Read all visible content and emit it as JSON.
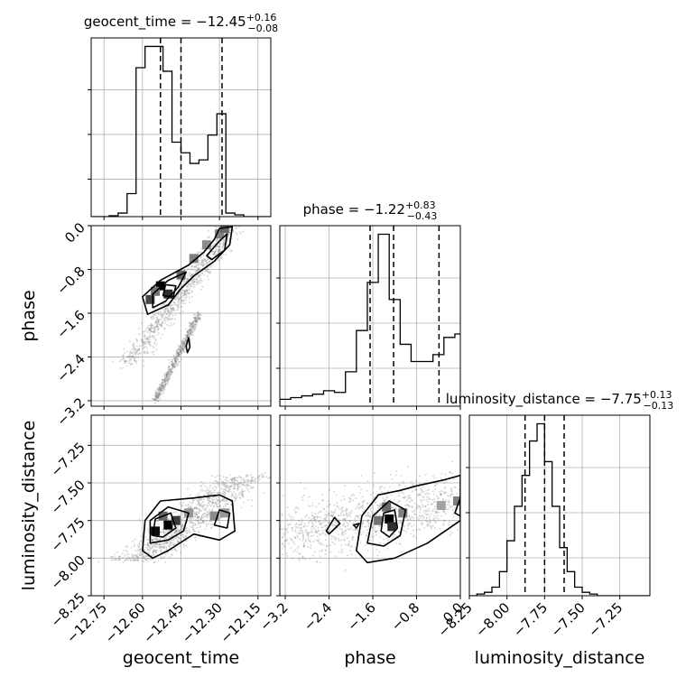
{
  "chart_data": {
    "type": "corner",
    "parameters": [
      "geocent_time",
      "phase",
      "luminosity_distance"
    ],
    "grid": true,
    "titles": [
      {
        "param": "geocent_time",
        "prefix": "geocent_time = ",
        "value": "−12.45",
        "plus": "+0.16",
        "minus": "−0.08"
      },
      {
        "param": "phase",
        "prefix": "phase = ",
        "value": "−1.22",
        "plus": "+0.83",
        "minus": "−0.43"
      },
      {
        "param": "luminosity_distance",
        "prefix": "luminosity_distance = ",
        "value": "−7.75",
        "plus": "+0.13",
        "minus": "−0.13"
      }
    ],
    "axes": {
      "geocent_time": {
        "label": "geocent_time",
        "range": [
          -12.8,
          -12.1
        ],
        "ticks": [
          -12.75,
          -12.6,
          -12.45,
          -12.3,
          -12.15
        ],
        "tick_labels": [
          "−12.75",
          "−12.60",
          "−12.45",
          "−12.30",
          "−12.15"
        ]
      },
      "phase": {
        "label": "phase",
        "range": [
          -3.3,
          0.0
        ],
        "ticks": [
          -3.2,
          -2.4,
          -1.6,
          -0.8,
          0.0
        ],
        "tick_labels": [
          "−3.2",
          "−2.4",
          "−1.6",
          "−0.8",
          "0.0"
        ]
      },
      "luminosity_distance": {
        "label": "luminosity_distance",
        "range": [
          -8.25,
          -7.05
        ],
        "ticks": [
          -8.25,
          -8.0,
          -7.75,
          -7.5,
          -7.25
        ],
        "tick_labels": [
          "−8.25",
          "−8.00",
          "−7.75",
          "−7.50",
          "−7.25"
        ]
      }
    },
    "histograms": {
      "geocent_time": {
        "edges": [
          -12.8,
          -12.765,
          -12.73,
          -12.695,
          -12.66,
          -12.625,
          -12.59,
          -12.555,
          -12.52,
          -12.485,
          -12.45,
          -12.415,
          -12.38,
          -12.345,
          -12.31,
          -12.275,
          -12.24,
          -12.205,
          -12.17,
          -12.135,
          -12.1
        ],
        "counts": [
          0,
          0,
          0.005,
          0.02,
          0.13,
          0.84,
          0.96,
          0.96,
          0.82,
          0.42,
          0.36,
          0.3,
          0.32,
          0.46,
          0.58,
          0.02,
          0.01,
          0,
          0,
          0
        ],
        "quantiles": [
          -12.53,
          -12.45,
          -12.29
        ]
      },
      "phase": {
        "edges": [
          -3.3,
          -3.1,
          -2.9,
          -2.7,
          -2.5,
          -2.3,
          -2.1,
          -1.9,
          -1.7,
          -1.5,
          -1.3,
          -1.1,
          -0.9,
          -0.7,
          -0.5,
          -0.3,
          -0.1,
          0.0
        ],
        "counts": [
          0.04,
          0.05,
          0.06,
          0.07,
          0.09,
          0.08,
          0.2,
          0.44,
          0.72,
          1.0,
          0.62,
          0.36,
          0.26,
          0.26,
          0.3,
          0.4,
          0.42
        ],
        "quantiles": [
          -1.65,
          -1.22,
          -0.39
        ]
      },
      "luminosity_distance": {
        "edges": [
          -8.25,
          -8.2,
          -8.15,
          -8.1,
          -8.05,
          -8.0,
          -7.95,
          -7.9,
          -7.85,
          -7.8,
          -7.75,
          -7.7,
          -7.65,
          -7.6,
          -7.55,
          -7.5,
          -7.45,
          -7.4,
          -7.35,
          -7.3,
          -7.25,
          -7.2,
          -7.15,
          -7.1,
          -7.05
        ],
        "counts": [
          0,
          0.01,
          0.02,
          0.05,
          0.14,
          0.32,
          0.52,
          0.7,
          0.9,
          1.0,
          0.78,
          0.52,
          0.28,
          0.14,
          0.05,
          0.02,
          0.01,
          0,
          0,
          0,
          0,
          0,
          0,
          0
        ],
        "quantiles": [
          -7.88,
          -7.75,
          -7.62
        ]
      }
    },
    "pairs": [
      {
        "x": "geocent_time",
        "y": "phase",
        "cells": [
          [
            -12.57,
            -1.35,
            0.7
          ],
          [
            -12.53,
            -1.1,
            1.0
          ],
          [
            -12.5,
            -1.25,
            0.8
          ],
          [
            -12.45,
            -0.9,
            0.55
          ],
          [
            -12.4,
            -0.6,
            0.45
          ],
          [
            -12.35,
            -0.35,
            0.4
          ],
          [
            -12.3,
            -0.15,
            0.45
          ],
          [
            -12.28,
            -0.05,
            0.55
          ],
          [
            -12.55,
            -1.2,
            0.5
          ]
        ],
        "contours": [
          [
            [
              -12.58,
              -1.62
            ],
            [
              -12.6,
              -1.3
            ],
            [
              -12.53,
              -1.0
            ],
            [
              -12.42,
              -0.72
            ],
            [
              -12.36,
              -0.48
            ],
            [
              -12.32,
              -0.25
            ],
            [
              -12.3,
              -0.05
            ],
            [
              -12.25,
              -0.02
            ],
            [
              -12.26,
              -0.35
            ],
            [
              -12.32,
              -0.65
            ],
            [
              -12.4,
              -0.92
            ],
            [
              -12.45,
              -1.15
            ],
            [
              -12.5,
              -1.45
            ]
          ],
          [
            [
              -12.56,
              -1.5
            ],
            [
              -12.56,
              -1.25
            ],
            [
              -12.5,
              -1.0
            ],
            [
              -12.43,
              -0.85
            ],
            [
              -12.46,
              -1.12
            ],
            [
              -12.51,
              -1.38
            ]
          ],
          [
            [
              -12.52,
              -1.28
            ],
            [
              -12.51,
              -1.08
            ],
            [
              -12.47,
              -1.1
            ],
            [
              -12.48,
              -1.3
            ]
          ],
          [
            [
              -12.35,
              -0.55
            ],
            [
              -12.3,
              -0.28
            ],
            [
              -12.27,
              -0.15
            ],
            [
              -12.28,
              -0.45
            ],
            [
              -12.33,
              -0.62
            ]
          ],
          [
            [
              -12.43,
              -2.2
            ],
            [
              -12.42,
              -2.05
            ],
            [
              -12.415,
              -2.22
            ],
            [
              -12.425,
              -2.32
            ]
          ]
        ],
        "scatter_trends": [
          {
            "from": [
              -12.65,
              -2.5
            ],
            "to": [
              -12.25,
              0.0
            ],
            "spread": 0.035,
            "jitter": 0.35,
            "n": 900
          },
          {
            "from": [
              -12.55,
              -3.2
            ],
            "to": [
              -12.38,
              -1.6
            ],
            "spread": 0.01,
            "jitter": 0.2,
            "n": 600
          }
        ]
      },
      {
        "x": "geocent_time",
        "y": "luminosity_distance",
        "cells": [
          [
            -12.55,
            -7.82,
            0.95
          ],
          [
            -12.5,
            -7.78,
            1.0
          ],
          [
            -12.47,
            -7.75,
            0.75
          ],
          [
            -12.52,
            -7.72,
            0.55
          ],
          [
            -12.42,
            -7.7,
            0.35
          ],
          [
            -12.32,
            -7.72,
            0.4
          ],
          [
            -12.28,
            -7.7,
            0.35
          ]
        ],
        "contours": [
          [
            [
              -12.6,
              -7.95
            ],
            [
              -12.59,
              -7.75
            ],
            [
              -12.53,
              -7.62
            ],
            [
              -12.4,
              -7.6
            ],
            [
              -12.3,
              -7.58
            ],
            [
              -12.25,
              -7.62
            ],
            [
              -12.24,
              -7.82
            ],
            [
              -12.3,
              -7.88
            ],
            [
              -12.4,
              -7.84
            ],
            [
              -12.5,
              -7.95
            ],
            [
              -12.56,
              -8.0
            ]
          ],
          [
            [
              -12.57,
              -7.9
            ],
            [
              -12.57,
              -7.75
            ],
            [
              -12.5,
              -7.66
            ],
            [
              -12.42,
              -7.7
            ],
            [
              -12.44,
              -7.82
            ],
            [
              -12.5,
              -7.88
            ]
          ],
          [
            [
              -12.56,
              -7.85
            ],
            [
              -12.55,
              -7.74
            ],
            [
              -12.49,
              -7.7
            ],
            [
              -12.47,
              -7.8
            ],
            [
              -12.52,
              -7.86
            ]
          ],
          [
            [
              -12.32,
              -7.78
            ],
            [
              -12.3,
              -7.68
            ],
            [
              -12.26,
              -7.7
            ],
            [
              -12.27,
              -7.8
            ]
          ]
        ],
        "scatter_trends": [
          {
            "from": [
              -12.62,
              -8.02
            ],
            "to": [
              -12.2,
              -7.45
            ],
            "spread": 0.08,
            "jitter": 0.12,
            "n": 1100
          }
        ]
      },
      {
        "x": "phase",
        "y": "luminosity_distance",
        "cells": [
          [
            -1.3,
            -7.74,
            1.0
          ],
          [
            -1.25,
            -7.79,
            0.8
          ],
          [
            -1.5,
            -7.75,
            0.5
          ],
          [
            -1.05,
            -7.7,
            0.45
          ],
          [
            -0.35,
            -7.65,
            0.3
          ],
          [
            -0.05,
            -7.62,
            0.45
          ],
          [
            -1.35,
            -7.66,
            0.55
          ]
        ],
        "contours": [
          [
            [
              -1.9,
              -7.95
            ],
            [
              -1.8,
              -7.72
            ],
            [
              -1.5,
              -7.58
            ],
            [
              -1.1,
              -7.55
            ],
            [
              -0.8,
              -7.52
            ],
            [
              -0.3,
              -7.48
            ],
            [
              0.0,
              -7.45
            ],
            [
              0.0,
              -7.75
            ],
            [
              -0.6,
              -7.9
            ],
            [
              -1.2,
              -8.0
            ],
            [
              -1.7,
              -8.03
            ]
          ],
          [
            [
              -1.7,
              -7.9
            ],
            [
              -1.6,
              -7.72
            ],
            [
              -1.3,
              -7.62
            ],
            [
              -1.0,
              -7.68
            ],
            [
              -1.1,
              -7.85
            ],
            [
              -1.4,
              -7.92
            ]
          ],
          [
            [
              -1.45,
              -7.82
            ],
            [
              -1.4,
              -7.7
            ],
            [
              -1.2,
              -7.68
            ],
            [
              -1.15,
              -7.8
            ],
            [
              -1.3,
              -7.86
            ]
          ],
          [
            [
              -0.1,
              -7.7
            ],
            [
              0.0,
              -7.6
            ],
            [
              0.0,
              -7.72
            ]
          ],
          [
            [
              -2.45,
              -7.82
            ],
            [
              -2.3,
              -7.73
            ],
            [
              -2.2,
              -7.77
            ],
            [
              -2.4,
              -7.84
            ]
          ],
          [
            [
              -1.95,
              -7.78
            ],
            [
              -1.85,
              -7.77
            ],
            [
              -1.9,
              -7.8
            ]
          ]
        ],
        "scatter_trends": [
          {
            "from": [
              -3.3,
              -7.85
            ],
            "to": [
              0.0,
              -7.6
            ],
            "spread": 0.08,
            "jitter": 1.6,
            "n": 1100
          }
        ]
      }
    ]
  }
}
